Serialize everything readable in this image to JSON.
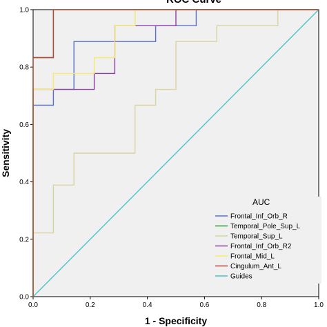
{
  "chart_data": {
    "type": "line",
    "title": "ROC Curve",
    "xlabel": "1 - Specificity",
    "ylabel": "Sensitivity",
    "xlim": [
      0,
      1
    ],
    "ylim": [
      0,
      1
    ],
    "xticks": [
      "0.0",
      "0.2",
      "0.4",
      "0.6",
      "0.8",
      "1.0"
    ],
    "yticks": [
      "0.0",
      "0.2",
      "0.4",
      "0.6",
      "0.8",
      "1.0"
    ],
    "grid": false,
    "legend": {
      "title": "AUC",
      "position": "lower-right"
    },
    "series": [
      {
        "name": "Frontal_Inf_Orb_R",
        "color": "#5b6fc4",
        "x": [
          0,
          0,
          0.071,
          0.071,
          0.143,
          0.143,
          0.429,
          0.429,
          0.571,
          0.571,
          1
        ],
        "y": [
          0,
          0.667,
          0.667,
          0.722,
          0.722,
          0.889,
          0.889,
          0.944,
          0.944,
          1,
          1
        ]
      },
      {
        "name": "Temporal_Pole_Sup_L",
        "color": "#2e9e2e",
        "x": [
          0,
          0,
          0.071,
          0.071,
          1
        ],
        "y": [
          0,
          0.833,
          0.833,
          1,
          1
        ]
      },
      {
        "name": "Temporal_Sup_L",
        "color": "#d8d4a0",
        "x": [
          0,
          0,
          0.071,
          0.071,
          0.143,
          0.143,
          0.357,
          0.357,
          0.429,
          0.429,
          0.5,
          0.5,
          0.643,
          0.643,
          0.857,
          0.857,
          1
        ],
        "y": [
          0,
          0.222,
          0.222,
          0.389,
          0.389,
          0.5,
          0.5,
          0.667,
          0.667,
          0.722,
          0.722,
          0.889,
          0.889,
          0.944,
          0.944,
          1,
          1
        ]
      },
      {
        "name": "Frontal_Inf_Orb_R2",
        "color": "#8c3fa0",
        "x": [
          0,
          0,
          0.071,
          0.071,
          0.214,
          0.214,
          0.286,
          0.286,
          0.5,
          0.5,
          1
        ],
        "y": [
          0,
          0.722,
          0.722,
          0.722,
          0.722,
          0.778,
          0.778,
          0.944,
          0.944,
          1,
          1
        ]
      },
      {
        "name": "Frontal_Mid_L",
        "color": "#f5ea6c",
        "x": [
          0,
          0,
          0.071,
          0.071,
          0.214,
          0.214,
          0.286,
          0.286,
          0.357,
          0.357,
          1
        ],
        "y": [
          0,
          0.722,
          0.722,
          0.778,
          0.778,
          0.833,
          0.833,
          0.944,
          0.944,
          1,
          1
        ]
      },
      {
        "name": "Cingulum_Ant_L",
        "color": "#b8443a",
        "x": [
          0,
          0,
          0.071,
          0.071,
          1
        ],
        "y": [
          0,
          0.833,
          0.833,
          1,
          1
        ]
      },
      {
        "name": "Guides",
        "color": "#4cc4c8",
        "x": [
          0,
          1
        ],
        "y": [
          0,
          1
        ]
      }
    ]
  }
}
